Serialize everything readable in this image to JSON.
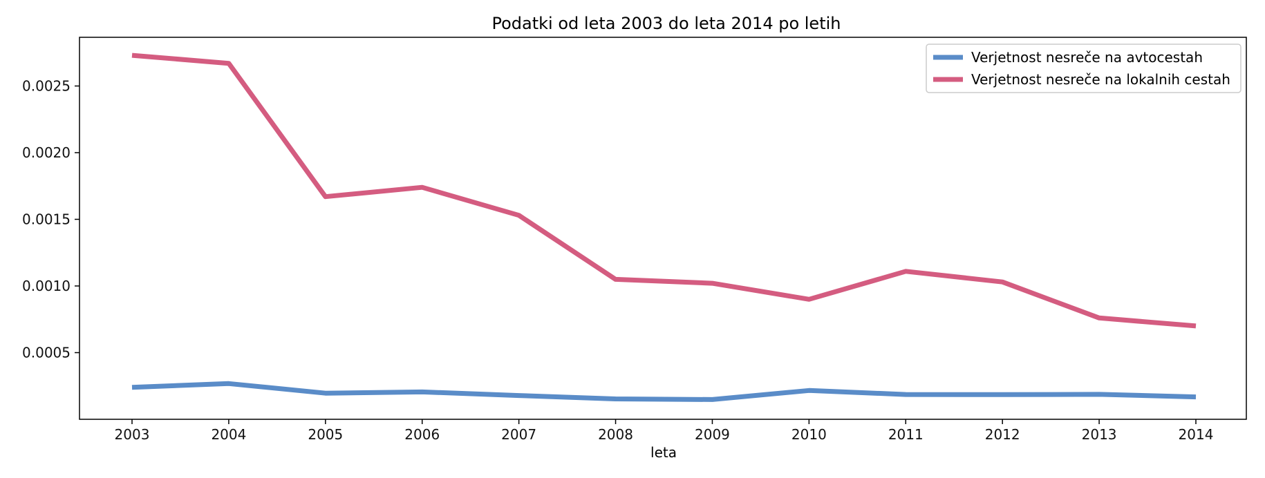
{
  "chart_data": {
    "type": "line",
    "title": "Podatki od leta 2003 do leta 2014 po letih",
    "xlabel": "leta",
    "ylabel": "",
    "x": [
      "2003",
      "2004",
      "2005",
      "2006",
      "2007",
      "2008",
      "2009",
      "2010",
      "2011",
      "2012",
      "2013",
      "2014"
    ],
    "yticks": [
      "0.0005",
      "0.0010",
      "0.0015",
      "0.0020",
      "0.0025"
    ],
    "ylim": [
      0.0,
      0.00285
    ],
    "grid": false,
    "legend_position": "top-right",
    "series": [
      {
        "name": "Verjetnost nesreče na avtocestah",
        "color": "#5a8cc8",
        "values": [
          0.00024,
          0.000268,
          0.000196,
          0.000205,
          0.000178,
          0.000153,
          0.000148,
          0.000216,
          0.000186,
          0.000185,
          0.000187,
          0.000168
        ]
      },
      {
        "name": "Verjetnost nesreče na lokalnih cestah",
        "color": "#d45c80",
        "values": [
          0.00273,
          0.00267,
          0.00167,
          0.00174,
          0.00153,
          0.00105,
          0.00102,
          0.0009,
          0.00111,
          0.00103,
          0.00076,
          0.0007
        ]
      }
    ]
  }
}
